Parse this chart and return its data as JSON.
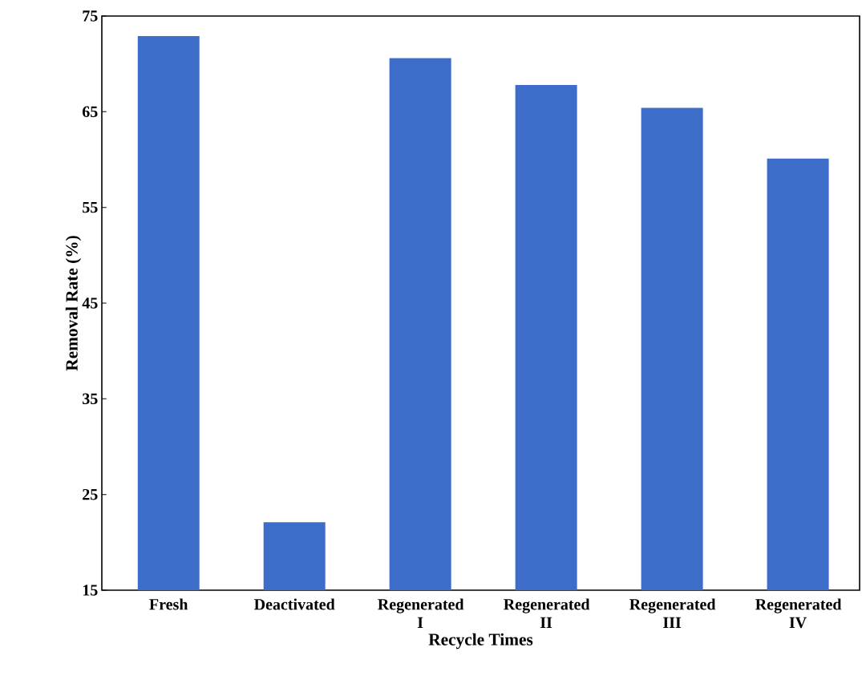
{
  "chart_data": {
    "type": "bar",
    "xlabel": "Recycle Times",
    "ylabel": "Removal Rate (%)",
    "categories": [
      "Fresh",
      "Deactivated",
      "Regenerated I",
      "Regenerated II",
      "Regenerated III",
      "Regenerated IV"
    ],
    "values": [
      72.9,
      22.1,
      70.6,
      67.8,
      65.4,
      60.1
    ],
    "color": "#3d6cc9",
    "ylim": [
      15,
      75
    ],
    "yticks": [
      15,
      25,
      35,
      45,
      55,
      65,
      75
    ]
  }
}
